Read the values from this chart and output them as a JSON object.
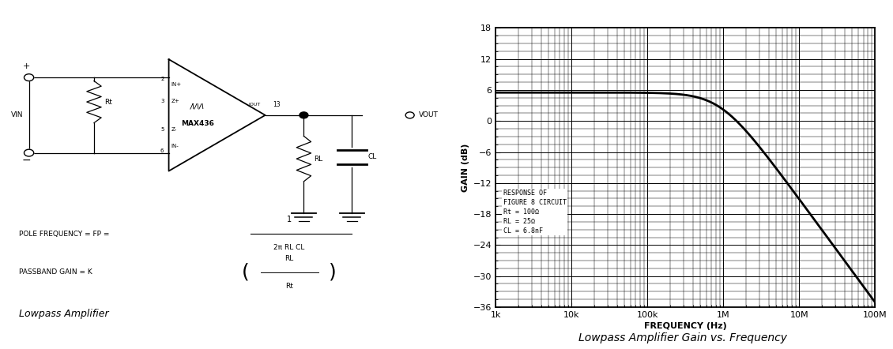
{
  "title": "Lowpass Amplifier Gain vs. Frequency",
  "xlabel": "FREQUENCY (Hz)",
  "ylabel": "GAIN (dB)",
  "ylim": [
    -36,
    18
  ],
  "yticks": [
    -36,
    -30,
    -24,
    -18,
    -12,
    -6,
    0,
    6,
    12,
    18
  ],
  "xtick_labels": [
    "1k",
    "10k",
    "100k",
    "1M",
    "10M",
    "100M"
  ],
  "xtick_vals": [
    1000,
    10000,
    100000,
    1000000,
    10000000,
    100000000
  ],
  "passband_gain_db": 5.5,
  "pole_freq_hz": 935000,
  "line_color": "#000000",
  "bg_color": "#ffffff",
  "grid_color": "#000000",
  "line_width": 2.0,
  "title_fontsize": 10,
  "axis_label_fontsize": 8,
  "tick_fontsize": 8,
  "annotation_text": "RESPONSE OF\nFIGURE 8 CIRCUIT\nRt = 100Ω\nRL = 25Ω\nCL = 6.8nF"
}
